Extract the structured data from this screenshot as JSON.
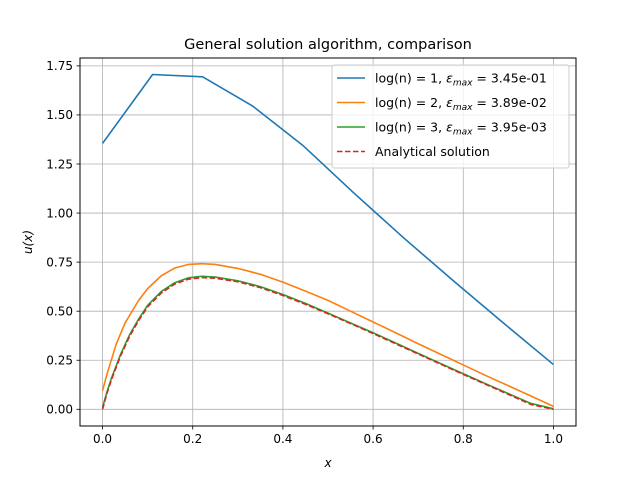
{
  "chart_data": {
    "type": "line",
    "title": "General solution algorithm, comparison",
    "xlabel": "x",
    "ylabel": "u(x)",
    "xlim": [
      -0.05,
      1.05
    ],
    "ylim": [
      -0.085,
      1.79
    ],
    "xticks": [
      0.0,
      0.2,
      0.4,
      0.6,
      0.8,
      1.0
    ],
    "xtick_labels": [
      "0.0",
      "0.2",
      "0.4",
      "0.6",
      "0.8",
      "1.0"
    ],
    "yticks": [
      0.0,
      0.25,
      0.5,
      0.75,
      1.0,
      1.25,
      1.5,
      1.75
    ],
    "ytick_labels": [
      "0.00",
      "0.25",
      "0.50",
      "0.75",
      "1.00",
      "1.25",
      "1.50",
      "1.75"
    ],
    "grid": true,
    "legend_position": "top-right",
    "series": [
      {
        "name": "log(n) = 1, εmax = 3.45e-01",
        "label_parts": {
          "fn": "log(n) = 1, ",
          "eps": "ε",
          "sub": "max",
          "value": " = 3.45e-01"
        },
        "color": "#1f77b4",
        "dash": "solid",
        "x": [
          0.0,
          0.111,
          0.222,
          0.333,
          0.444,
          0.556,
          0.667,
          0.778,
          0.889,
          1.0
        ],
        "y": [
          1.355,
          1.706,
          1.694,
          1.545,
          1.345,
          1.105,
          0.875,
          0.655,
          0.44,
          0.228
        ]
      },
      {
        "name": "log(n) = 2, εmax = 3.89e-02",
        "label_parts": {
          "fn": "log(n) = 2, ",
          "eps": "ε",
          "sub": "max",
          "value": " = 3.89e-02"
        },
        "color": "#ff7f0e",
        "dash": "solid",
        "x": [
          0.0,
          0.01,
          0.03,
          0.05,
          0.08,
          0.1,
          0.13,
          0.16,
          0.19,
          0.22,
          0.25,
          0.3,
          0.35,
          0.4,
          0.45,
          0.5,
          0.55,
          0.6,
          0.65,
          0.7,
          0.75,
          0.8,
          0.85,
          0.9,
          0.95,
          1.0
        ],
        "y": [
          0.095,
          0.18,
          0.33,
          0.44,
          0.555,
          0.615,
          0.68,
          0.72,
          0.738,
          0.742,
          0.738,
          0.718,
          0.688,
          0.648,
          0.602,
          0.555,
          0.5,
          0.445,
          0.39,
          0.334,
          0.28,
          0.226,
          0.172,
          0.12,
          0.068,
          0.015
        ]
      },
      {
        "name": "log(n) = 3, εmax = 3.95e-03",
        "label_parts": {
          "fn": "log(n) = 3, ",
          "eps": "ε",
          "sub": "max",
          "value": " = 3.95e-03"
        },
        "color": "#2ca02c",
        "dash": "solid",
        "x": [
          0.0,
          0.01,
          0.02,
          0.04,
          0.06,
          0.08,
          0.1,
          0.13,
          0.16,
          0.19,
          0.22,
          0.25,
          0.3,
          0.35,
          0.4,
          0.45,
          0.5,
          0.55,
          0.6,
          0.65,
          0.7,
          0.75,
          0.8,
          0.85,
          0.9,
          0.95,
          1.0
        ],
        "y": [
          0.01,
          0.09,
          0.16,
          0.28,
          0.38,
          0.46,
          0.53,
          0.6,
          0.645,
          0.67,
          0.678,
          0.674,
          0.655,
          0.625,
          0.585,
          0.54,
          0.49,
          0.44,
          0.39,
          0.338,
          0.285,
          0.233,
          0.181,
          0.13,
          0.08,
          0.03,
          0.003
        ]
      },
      {
        "name": "Analytical solution",
        "label_parts": {
          "fn": "Analytical solution",
          "eps": "",
          "sub": "",
          "value": ""
        },
        "color": "#d62728",
        "dash": "dashed",
        "x": [
          0.0,
          0.01,
          0.02,
          0.04,
          0.06,
          0.08,
          0.1,
          0.13,
          0.16,
          0.19,
          0.22,
          0.25,
          0.3,
          0.35,
          0.4,
          0.45,
          0.5,
          0.55,
          0.6,
          0.65,
          0.7,
          0.75,
          0.8,
          0.85,
          0.9,
          0.95,
          1.0
        ],
        "y": [
          0.0,
          0.083,
          0.152,
          0.272,
          0.372,
          0.452,
          0.522,
          0.592,
          0.638,
          0.663,
          0.671,
          0.668,
          0.65,
          0.62,
          0.58,
          0.535,
          0.487,
          0.437,
          0.386,
          0.334,
          0.282,
          0.23,
          0.178,
          0.127,
          0.076,
          0.025,
          0.0
        ]
      }
    ]
  }
}
